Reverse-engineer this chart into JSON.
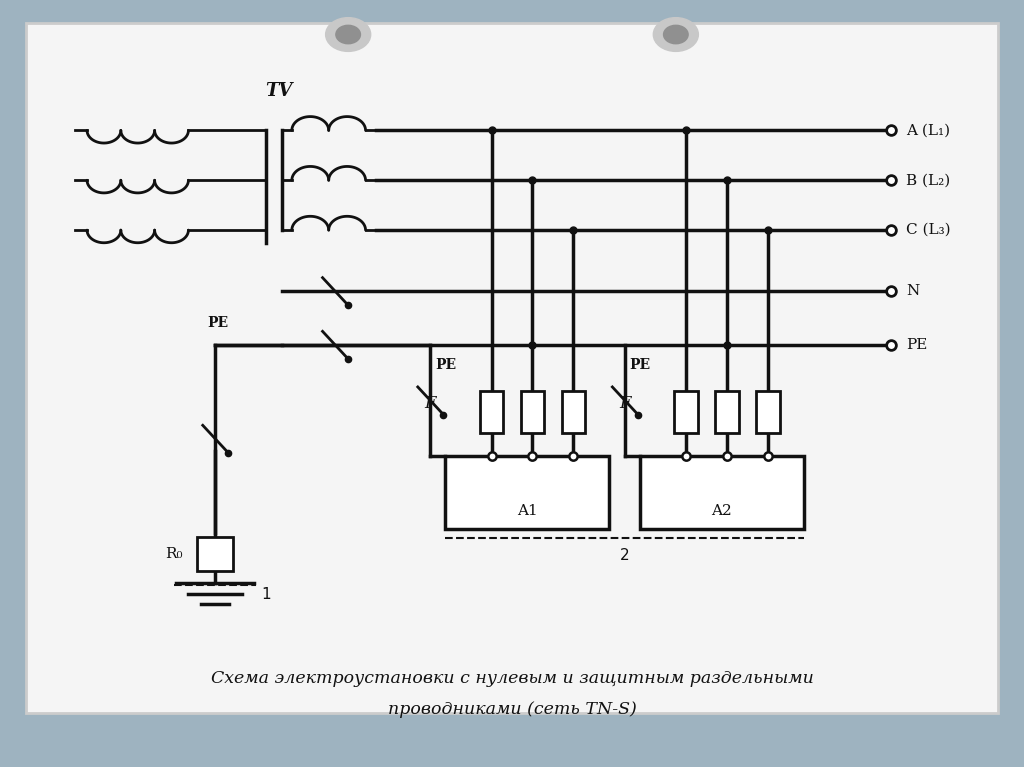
{
  "bg_color": "#9eb3c0",
  "paper_color": "#f5f5f5",
  "line_color": "#111111",
  "title_line1": "Схема электроустановки с нулевым и защитным раздельными",
  "title_line2": "проводниками (сеть TN-S)",
  "labels_right": [
    "A (L₁)",
    "B (L₂)",
    "C (L₃)",
    "N",
    "PE"
  ],
  "TV_label": "TV",
  "label_PE_left": "PE",
  "label_PE_a1": "PE",
  "label_PE_mid": "PE",
  "label_F1": "F",
  "label_F2": "F",
  "label_R0": "R₀",
  "label_A1": "A1",
  "label_A2": "A2",
  "label_1": "1",
  "label_2": "2"
}
